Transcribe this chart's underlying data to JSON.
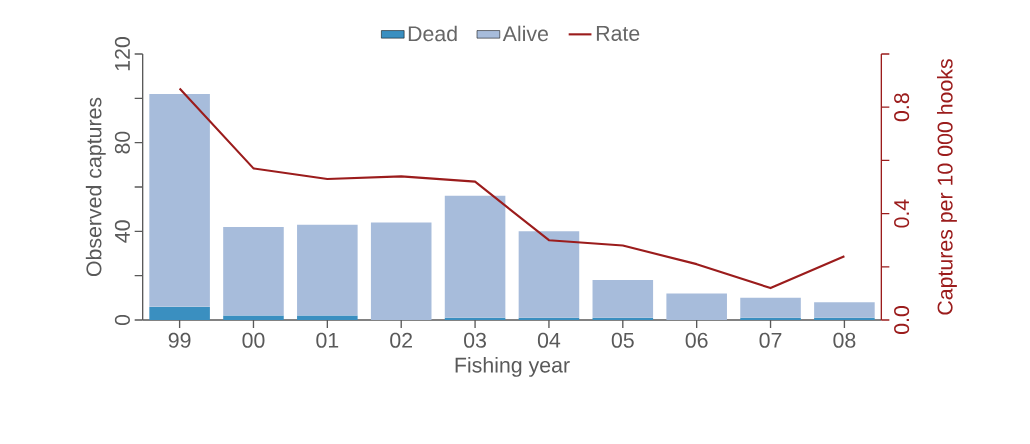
{
  "chart_data": {
    "type": "bar",
    "stacked": true,
    "categories": [
      "99",
      "00",
      "01",
      "02",
      "03",
      "04",
      "05",
      "06",
      "07",
      "08"
    ],
    "xlabel": "Fishing year",
    "ylabel": "Observed captures",
    "y2label": "Captures per 10 000 hooks",
    "ylim": [
      0,
      120
    ],
    "yticks": [
      0,
      {
        "value": 20,
        "label": null
      },
      40,
      {
        "value": 60,
        "label": null
      },
      80,
      {
        "value": 100,
        "label": null
      },
      120
    ],
    "y2lim": [
      0,
      1.0
    ],
    "y2ticks": [
      {
        "value": 0,
        "label": "0.0"
      },
      {
        "value": 0.2,
        "label": null
      },
      0.4,
      {
        "value": 0.6,
        "label": null
      },
      0.8,
      {
        "value": 1.0,
        "label": null
      }
    ],
    "legend": "top",
    "series": [
      {
        "name": "Dead",
        "color": "#3a8fc0",
        "values": [
          6,
          2,
          2,
          0,
          1,
          1,
          1,
          0,
          1,
          1
        ]
      },
      {
        "name": "Alive",
        "color": "#a7bcdb",
        "values": [
          96,
          40,
          41,
          44,
          55,
          39,
          17,
          12,
          9,
          7
        ]
      },
      {
        "name": "Rate",
        "type": "line",
        "axis": "y2",
        "color": "#9b1c1c",
        "values": [
          0.87,
          0.57,
          0.53,
          0.54,
          0.52,
          0.3,
          0.28,
          0.21,
          0.12,
          0.24
        ]
      }
    ]
  }
}
